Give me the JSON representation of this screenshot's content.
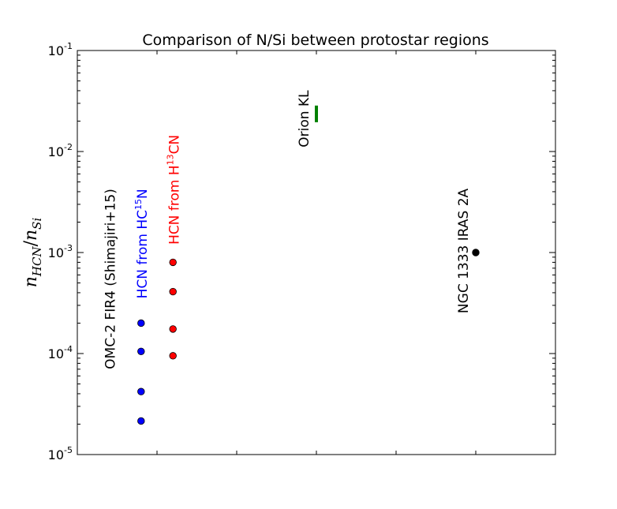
{
  "chart_data": {
    "type": "scatter",
    "title": "Comparison of N/Si between protostar regions",
    "xlabel": "",
    "ylabel": "n_HCN/n_Si",
    "ylabel_parts": {
      "main_left": "n",
      "sub_left": "HCN",
      "slash": "/",
      "main_right": "n",
      "sub_right": "Si"
    },
    "xscale": "linear",
    "yscale": "log",
    "xlim": [
      0,
      6
    ],
    "ylim": [
      1e-05,
      0.1
    ],
    "grid": false,
    "y_ticks": [
      {
        "value": 1e-05,
        "base": "10",
        "exp": "-5"
      },
      {
        "value": 0.0001,
        "base": "10",
        "exp": "-4"
      },
      {
        "value": 0.001,
        "base": "10",
        "exp": "-3"
      },
      {
        "value": 0.01,
        "base": "10",
        "exp": "-2"
      },
      {
        "value": 0.1,
        "base": "10",
        "exp": "-1"
      }
    ],
    "x_ticks": [
      1,
      2,
      3,
      4,
      5
    ],
    "series": [
      {
        "color": "#0000ff",
        "marker": "circle",
        "points": [
          {
            "x": 0.8,
            "y": 0.0002
          },
          {
            "x": 0.8,
            "y": 0.000105
          },
          {
            "x": 0.8,
            "y": 4.2e-05
          },
          {
            "x": 0.8,
            "y": 2.15e-05
          }
        ]
      },
      {
        "color": "#ff0000",
        "marker": "circle",
        "points": [
          {
            "x": 1.2,
            "y": 0.0008
          },
          {
            "x": 1.2,
            "y": 0.00041
          },
          {
            "x": 1.2,
            "y": 0.000175
          },
          {
            "x": 1.2,
            "y": 9.5e-05
          }
        ]
      },
      {
        "color": "#000000",
        "marker": "circle",
        "points": [
          {
            "x": 5.0,
            "y": 0.001
          }
        ]
      },
      {
        "color": "#008000",
        "marker": "range",
        "ranges": [
          {
            "x": 3.0,
            "y_low": 0.0195,
            "y_high": 0.0285
          }
        ]
      }
    ],
    "annotations": [
      {
        "text": "OMC-2 FIR4 (Shimajiri+15)",
        "color": "#000000",
        "x": 0.47,
        "y_base": 7e-05,
        "rotation": -90
      },
      {
        "text_main": "HCN from HC",
        "sup": "15",
        "text_tail": "N",
        "color": "#0000ff",
        "x": 0.87,
        "y_base": 0.00035,
        "rotation": -90
      },
      {
        "text_main": "HCN from H",
        "sup": "13",
        "text_tail": "CN",
        "color": "#ff0000",
        "x": 1.27,
        "y_base": 0.0012,
        "rotation": -90
      },
      {
        "text": "Orion KL",
        "color": "#000000",
        "x": 2.9,
        "y_base": 0.011,
        "rotation": -90
      },
      {
        "text": "NGC 1333 IRAS 2A",
        "color": "#000000",
        "x": 4.9,
        "y_base": 0.00025,
        "rotation": -90
      }
    ]
  }
}
